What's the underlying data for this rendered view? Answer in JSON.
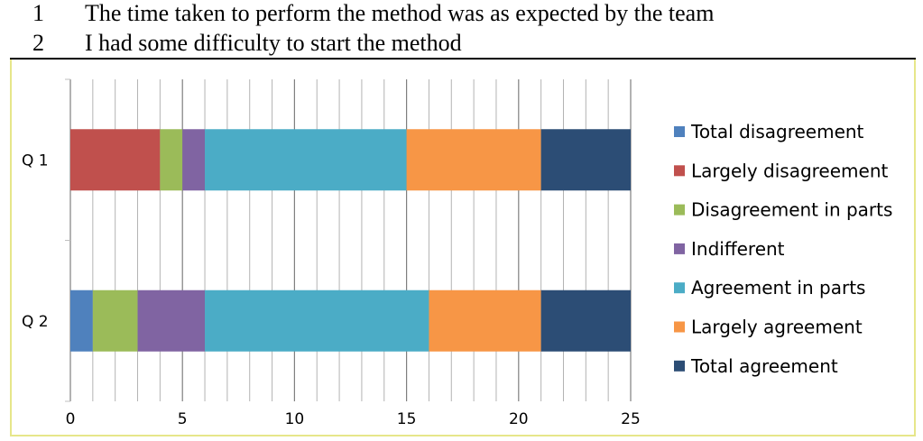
{
  "questions": [
    {
      "num": "1",
      "text": "The time taken to perform the method was as expected by the team"
    },
    {
      "num": "2",
      "text": "I had some difficulty to start the method"
    }
  ],
  "chart_data": {
    "type": "bar",
    "orientation": "horizontal",
    "stacked": true,
    "categories": [
      "Q 1",
      "Q 2"
    ],
    "series": [
      {
        "name": "Total disagreement",
        "color": "#4f81bd",
        "values": [
          0,
          1
        ]
      },
      {
        "name": "Largely disagreement",
        "color": "#c0504d",
        "values": [
          4,
          0
        ]
      },
      {
        "name": "Disagreement in parts",
        "color": "#9bbb59",
        "values": [
          1,
          2
        ]
      },
      {
        "name": "Indifferent",
        "color": "#8064a2",
        "values": [
          1,
          3
        ]
      },
      {
        "name": "Agreement in parts",
        "color": "#4bacc6",
        "values": [
          9,
          10
        ]
      },
      {
        "name": "Largely agreement",
        "color": "#f79646",
        "values": [
          6,
          5
        ]
      },
      {
        "name": "Total agreement",
        "color": "#2c4d75",
        "values": [
          4,
          4
        ]
      }
    ],
    "xlim": [
      0,
      25
    ],
    "xticks": [
      0,
      5,
      10,
      15,
      20,
      25
    ],
    "minor_grid_step": 1,
    "grid": true,
    "legend": "right",
    "title": "",
    "xlabel": "",
    "ylabel": ""
  }
}
